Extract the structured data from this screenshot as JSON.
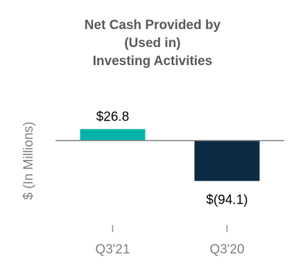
{
  "chart_data": {
    "type": "bar",
    "title_lines": [
      "Net Cash Provided by",
      "(Used in)",
      "Investing Activities"
    ],
    "ylabel": "$ (In Millions)",
    "categories": [
      "Q3'21",
      "Q3'20"
    ],
    "values": [
      26.8,
      -94.1
    ],
    "data_labels": [
      "$26.8",
      "$(94.1)"
    ],
    "colors": [
      "#00b3a6",
      "#0d2b42"
    ],
    "ylim": [
      -200,
      60
    ],
    "grid": false,
    "legend": "none"
  }
}
